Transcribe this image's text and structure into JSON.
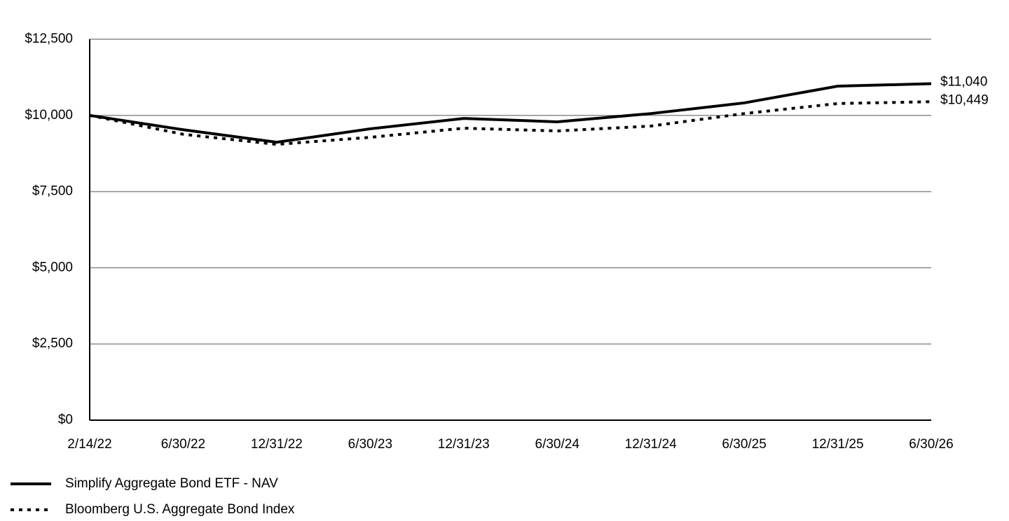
{
  "chart_data": {
    "type": "line",
    "categories": [
      "2/14/22",
      "6/30/22",
      "12/31/22",
      "6/30/23",
      "12/31/23",
      "6/30/24",
      "12/31/24",
      "6/30/25",
      "12/31/25",
      "6/30/26"
    ],
    "series": [
      {
        "name": "Simplify Aggregate Bond ETF - NAV",
        "color": "#000000",
        "dash": "solid",
        "values": [
          10000,
          9530,
          9120,
          9560,
          9900,
          9790,
          10060,
          10410,
          10960,
          11040
        ],
        "value_labels": [
          null,
          null,
          null,
          null,
          null,
          null,
          null,
          null,
          null,
          "$11,040"
        ]
      },
      {
        "name": "Bloomberg U.S. Aggregate Bond Index",
        "color": "#000000",
        "dash": "dotted",
        "values": [
          10000,
          9380,
          9050,
          9280,
          9580,
          9490,
          9650,
          10060,
          10390,
          10449
        ],
        "value_labels": [
          null,
          null,
          null,
          null,
          null,
          null,
          null,
          null,
          null,
          "$10,449"
        ]
      }
    ],
    "ylim": [
      0,
      12500
    ],
    "yticks": [
      {
        "value": 0,
        "label": "$0"
      },
      {
        "value": 2500,
        "label": "$2,500"
      },
      {
        "value": 5000,
        "label": "$5,000"
      },
      {
        "value": 7500,
        "label": "$7,500"
      },
      {
        "value": 10000,
        "label": "$10,000"
      },
      {
        "value": 12500,
        "label": "$12,500"
      }
    ],
    "grid": true
  }
}
